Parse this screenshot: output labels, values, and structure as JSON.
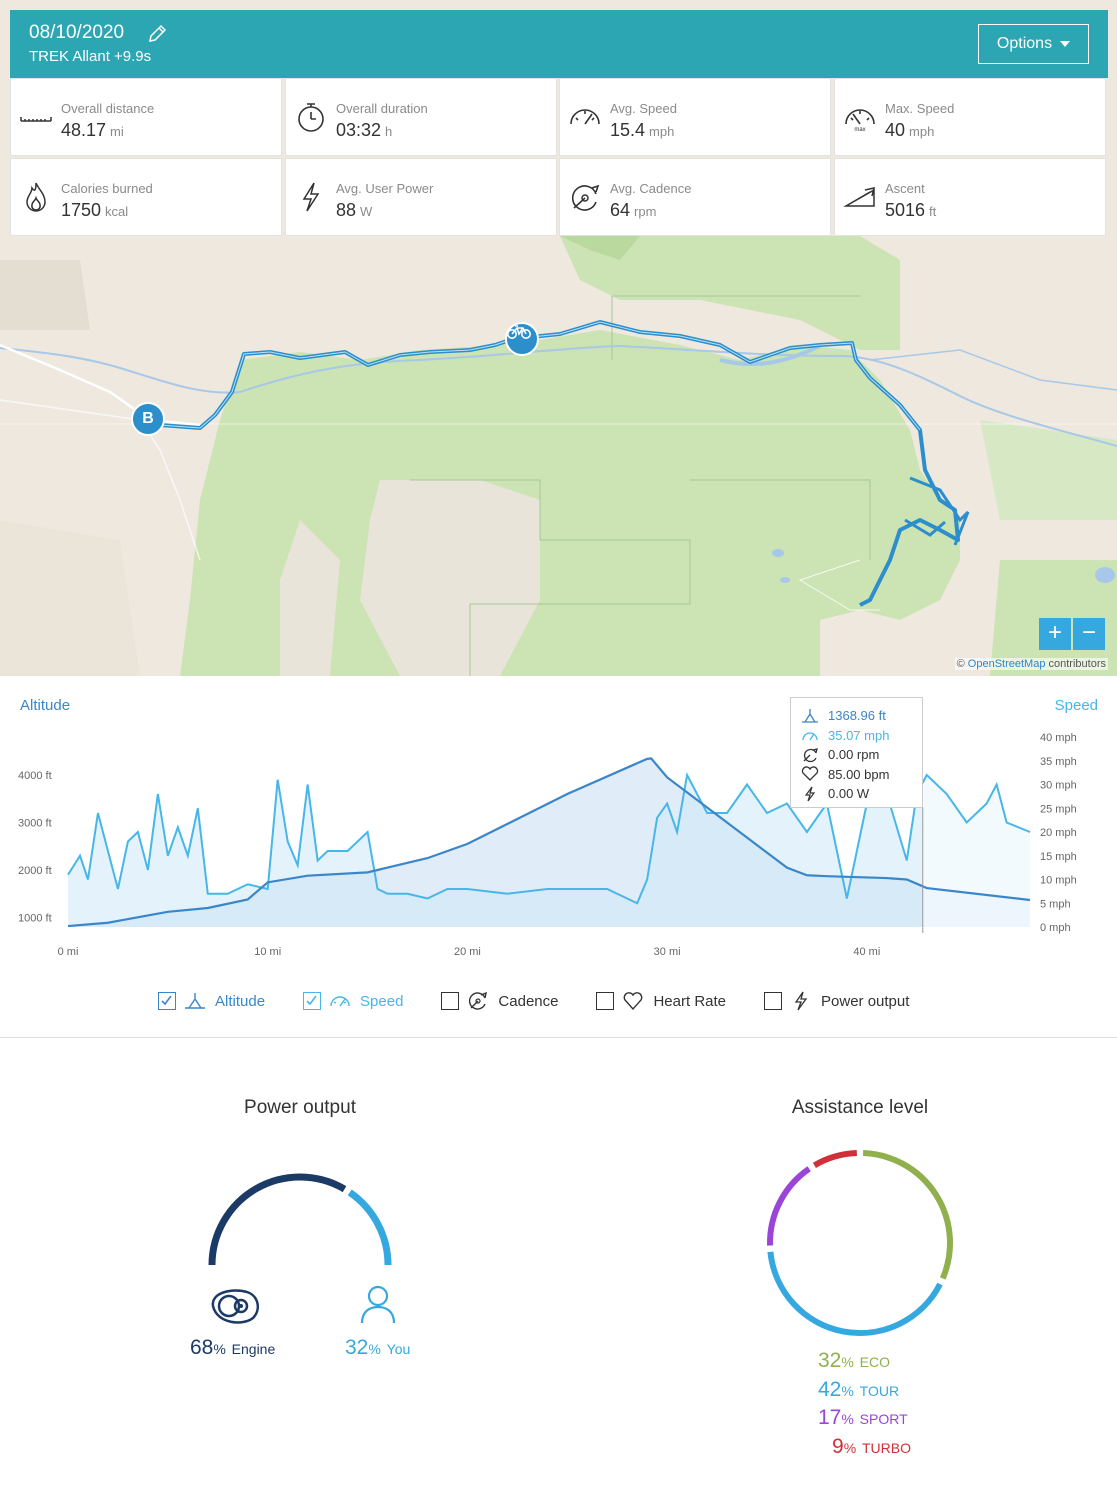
{
  "header": {
    "date": "08/10/2020",
    "bike": "TREK Allant +9.9s",
    "options_label": "Options"
  },
  "stats": [
    {
      "label": "Overall distance",
      "value": "48.17",
      "unit": "mi",
      "icon": "ruler-icon"
    },
    {
      "label": "Overall duration",
      "value": "03:32",
      "unit": "h",
      "icon": "stopwatch-icon"
    },
    {
      "label": "Avg. Speed",
      "value": "15.4",
      "unit": "mph",
      "icon": "speedometer-icon"
    },
    {
      "label": "Max. Speed",
      "value": "40",
      "unit": "mph",
      "icon": "max-speedometer-icon"
    },
    {
      "label": "Calories burned",
      "value": "1750",
      "unit": "kcal",
      "icon": "flame-icon"
    },
    {
      "label": "Avg. User Power",
      "value": "88",
      "unit": "W",
      "icon": "lightning-icon"
    },
    {
      "label": "Avg. Cadence",
      "value": "64",
      "unit": "rpm",
      "icon": "cadence-icon"
    },
    {
      "label": "Ascent",
      "value": "5016",
      "unit": "ft",
      "icon": "ascent-icon"
    }
  ],
  "map": {
    "zoom_in": "+",
    "zoom_out": "−",
    "attribution_prefix": "©",
    "attribution_link": "OpenStreetMap",
    "attribution_suffix": "contributors",
    "end_marker": "B"
  },
  "chart": {
    "altitude_title": "Altitude",
    "speed_title": "Speed",
    "tooltip": {
      "altitude": "1368.96 ft",
      "speed": "35.07 mph",
      "cadence": "0.00 rpm",
      "heart_rate": "85.00 bpm",
      "power": "0.00 W"
    },
    "toggles": [
      {
        "label": "Altitude",
        "checked": true
      },
      {
        "label": "Speed",
        "checked": true
      },
      {
        "label": "Cadence",
        "checked": false
      },
      {
        "label": "Heart Rate",
        "checked": false
      },
      {
        "label": "Power output",
        "checked": false
      }
    ]
  },
  "chart_data": {
    "type": "area",
    "x_ticks": [
      "0 mi",
      "10 mi",
      "20 mi",
      "30 mi",
      "40 mi"
    ],
    "y_left_ticks": [
      "1000 ft",
      "2000 ft",
      "3000 ft",
      "4000 ft"
    ],
    "y_right_ticks": [
      "0 mph",
      "5 mph",
      "10 mph",
      "15 mph",
      "20 mph",
      "25 mph",
      "30 mph",
      "35 mph",
      "40 mph"
    ],
    "xlim": [
      0,
      48.17
    ],
    "ylim_left": [
      800,
      4800
    ],
    "ylim_right": [
      0,
      40
    ],
    "cursor_x": 42.8,
    "series": [
      {
        "name": "Altitude",
        "color": "#3a86c9",
        "x": [
          0,
          2,
          5,
          7,
          9,
          10,
          12,
          15,
          18,
          20,
          25,
          29,
          29.2,
          30,
          33,
          36,
          37,
          38,
          41,
          42,
          43,
          48.17
        ],
        "y": [
          820,
          890,
          1120,
          1200,
          1380,
          1740,
          1880,
          1950,
          2250,
          2550,
          3600,
          4340,
          4350,
          3950,
          3000,
          2050,
          1890,
          1870,
          1830,
          1800,
          1620,
          1368
        ]
      },
      {
        "name": "Speed",
        "color": "#47b6e8",
        "x": [
          0,
          0.6,
          1,
          1.5,
          2,
          2.5,
          3,
          3.5,
          4,
          4.5,
          5,
          5.5,
          6,
          6.5,
          7,
          7.5,
          8,
          9,
          10,
          10.5,
          11,
          11.5,
          12,
          12.5,
          13,
          14,
          15,
          15.5,
          16,
          17,
          18,
          19,
          20,
          22,
          24,
          26,
          27,
          28,
          28.5,
          29,
          29.5,
          30,
          30.5,
          31,
          32,
          33,
          34,
          35,
          36,
          37,
          38,
          39,
          40,
          41,
          42,
          42.5,
          43,
          44,
          45,
          46,
          46.5,
          47,
          48.17
        ],
        "y": [
          11,
          15,
          10,
          24,
          16,
          8,
          18,
          20,
          12,
          28,
          15,
          21,
          15,
          25,
          7,
          7,
          7,
          9,
          8,
          31,
          18,
          13,
          30,
          14,
          16,
          16,
          20,
          8,
          7,
          7,
          6,
          8,
          8,
          7,
          8,
          8,
          8,
          6,
          5,
          10,
          23,
          26,
          20,
          32,
          24,
          24,
          30,
          24,
          26,
          20,
          26,
          6,
          26,
          28,
          14,
          28,
          32,
          28,
          22,
          26,
          30,
          22,
          20
        ]
      }
    ]
  },
  "power_output": {
    "title": "Power output",
    "engine_pct": 68,
    "you_pct": 32,
    "engine_value": "68",
    "you_value": "32",
    "pct_symbol": "%",
    "engine_label": "Engine",
    "you_label": "You",
    "engine_color": "#1c3a66",
    "you_color": "#36a8e0"
  },
  "assistance_level": {
    "title": "Assistance level",
    "pct_symbol": "%",
    "levels": [
      {
        "name": "ECO",
        "value": "32",
        "pct": 32,
        "color": "#8fb04c"
      },
      {
        "name": "TOUR",
        "value": "42",
        "pct": 42,
        "color": "#36a8e0"
      },
      {
        "name": "SPORT",
        "value": "17",
        "pct": 17,
        "color": "#9b45d8"
      },
      {
        "name": "TURBO",
        "value": "9",
        "pct": 9,
        "color": "#d0303a"
      }
    ]
  }
}
